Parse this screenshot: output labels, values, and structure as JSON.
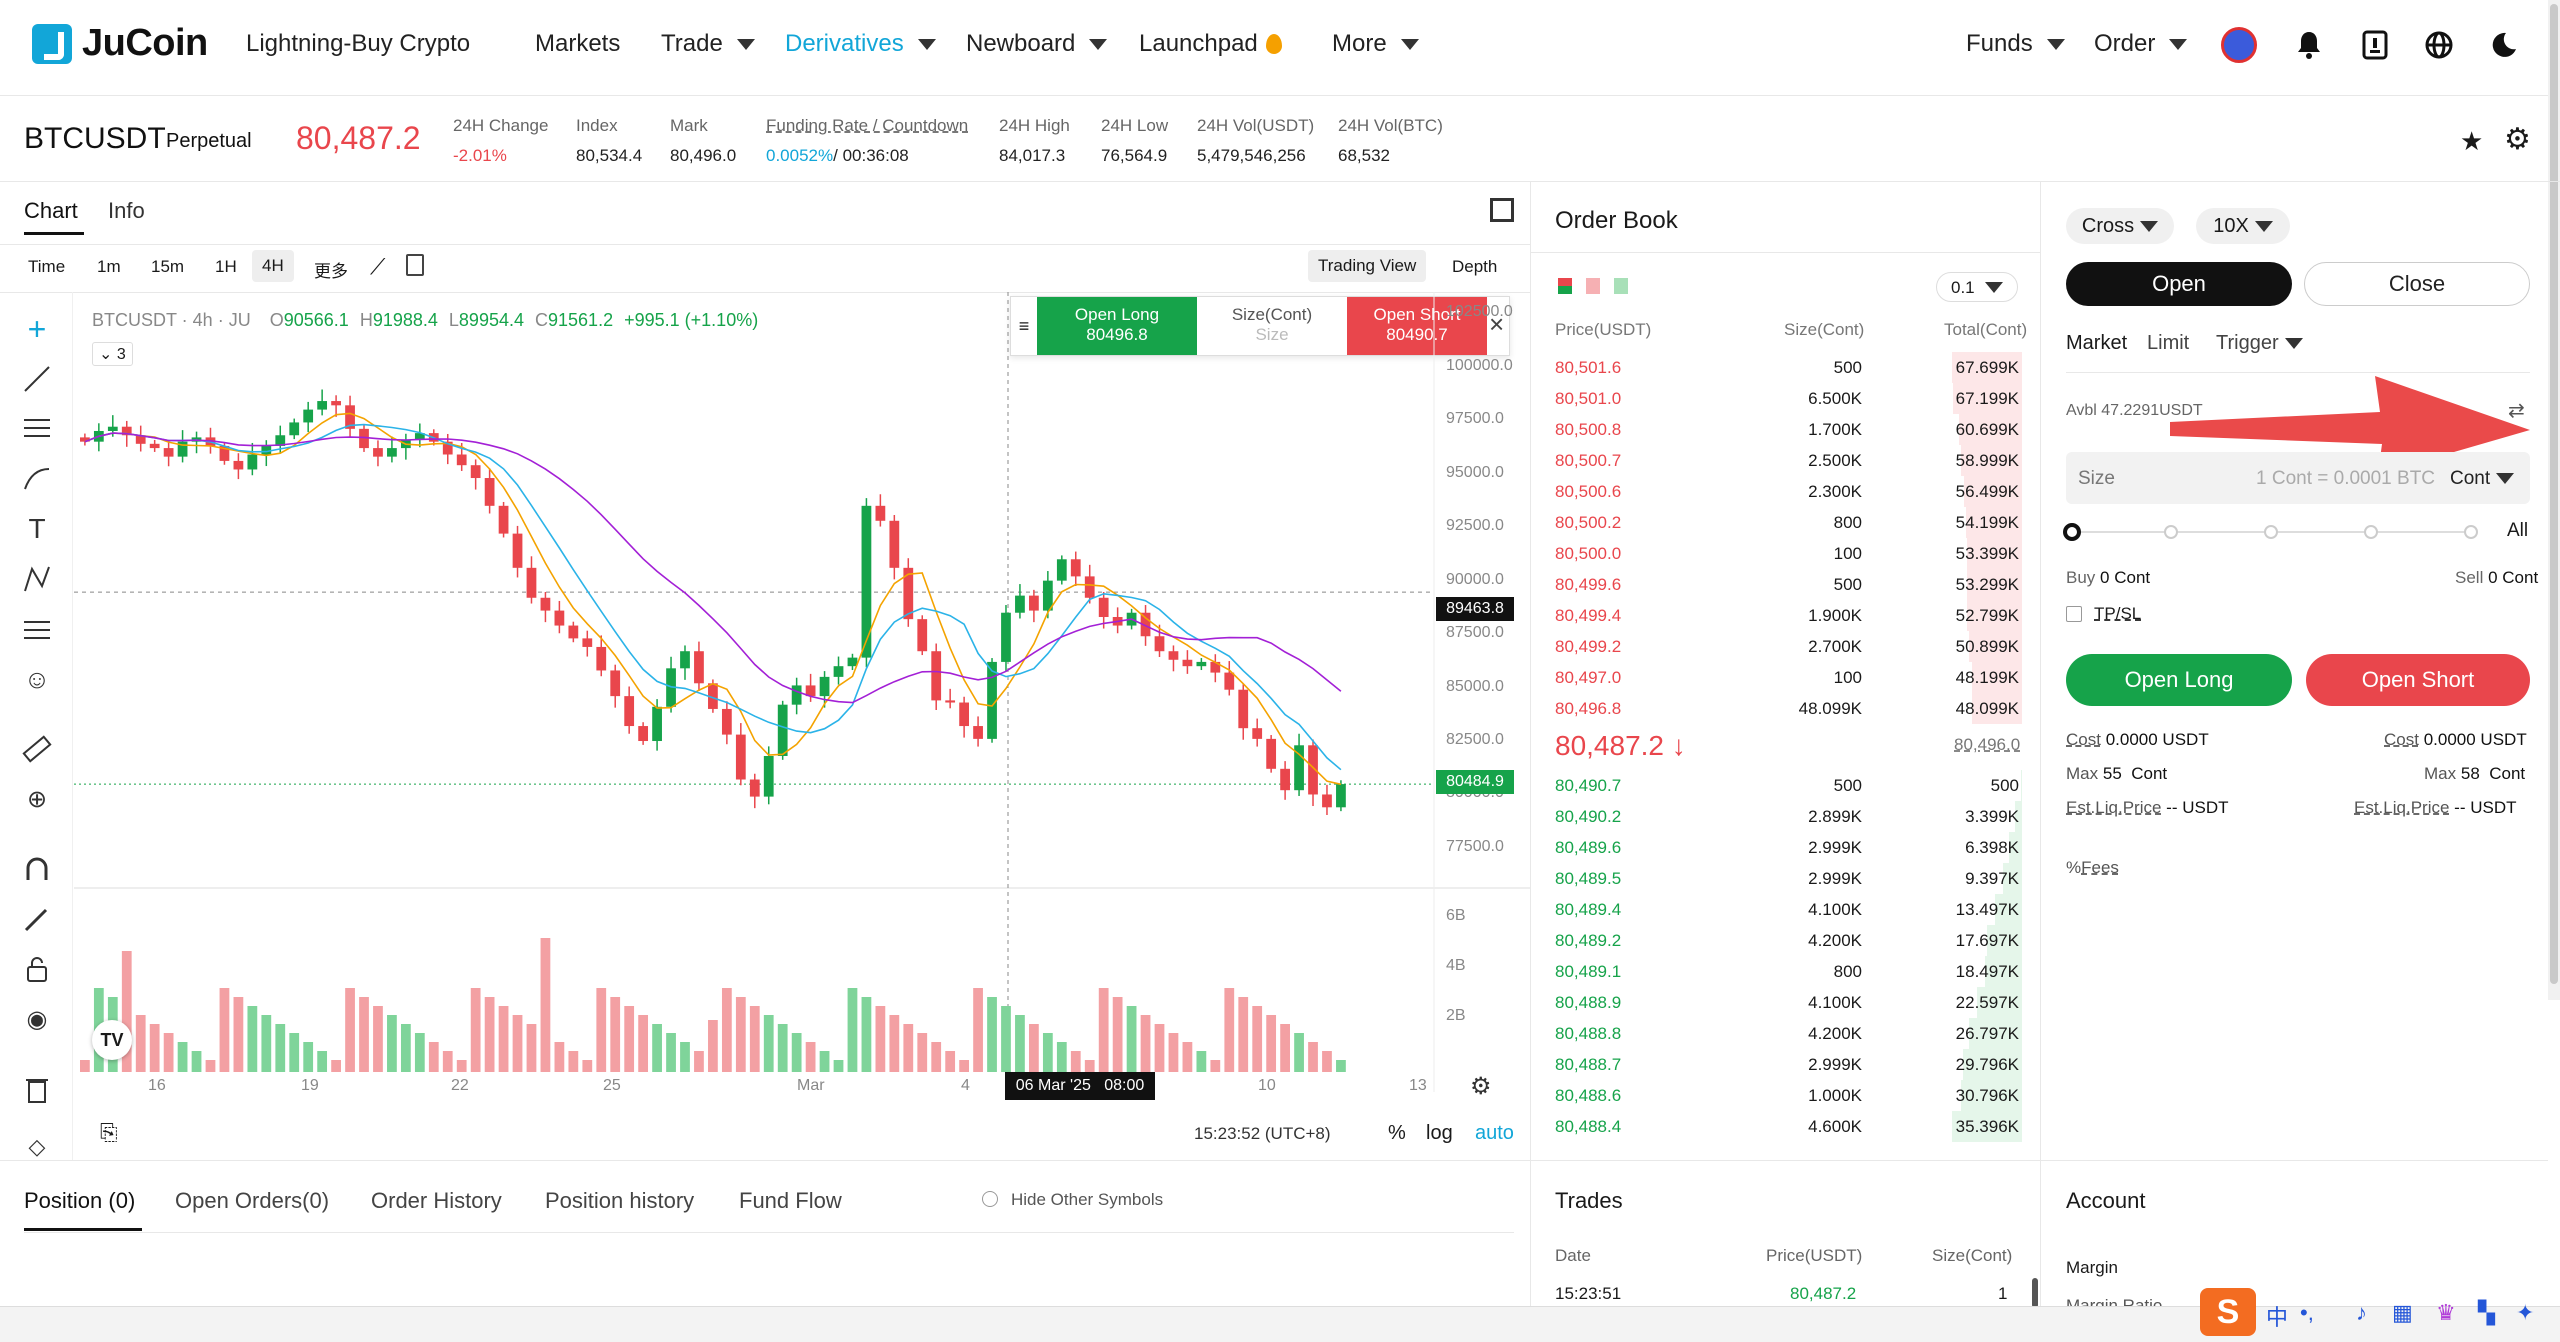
{
  "nav": {
    "logo": "JuCoin",
    "items": [
      "Lightning-Buy Crypto",
      "Markets",
      "Trade",
      "Derivatives",
      "Newboard",
      "Launchpad",
      "More"
    ],
    "right": [
      "Funds",
      "Order"
    ]
  },
  "ticker": {
    "symbol": "BTCUSDT",
    "type": "Perpetual",
    "price": "80,487.2",
    "stats": [
      {
        "label": "24H Change",
        "value": "-2.01%"
      },
      {
        "label": "Index",
        "value": "80,534.4"
      },
      {
        "label": "Mark",
        "value": "80,496.0"
      },
      {
        "label": "Funding Rate / Countdown",
        "value": "0.0052%",
        "value2": "/ 00:36:08"
      },
      {
        "label": "24H High",
        "value": "84,017.3"
      },
      {
        "label": "24H Low",
        "value": "76,564.9"
      },
      {
        "label": "24H Vol(USDT)",
        "value": "5,479,546,256"
      },
      {
        "label": "24H Vol(BTC)",
        "value": "68,532"
      }
    ]
  },
  "chart_panel": {
    "tabs": [
      "Chart",
      "Info"
    ],
    "intervals": [
      "Time",
      "1m",
      "15m",
      "1H",
      "4H",
      "更多"
    ],
    "views": [
      "Trading View",
      "Depth"
    ],
    "legend": "BTCUSDT · 4h · JU",
    "ohlc": {
      "o": "90566.1",
      "h": "91988.4",
      "l": "89954.4",
      "c": "91561.2",
      "chg": "+995.1 (+1.10%)"
    },
    "indicators_count": "3",
    "quick": {
      "long_label": "Open Long",
      "long_price": "80496.8",
      "size_label": "Size(Cont)",
      "size_ph": "Size",
      "short_label": "Open Short",
      "short_price": "80490.7"
    },
    "y_ticks": [
      "102500.0",
      "100000.0",
      "97500.0",
      "95000.0",
      "92500.0",
      "90000.0",
      "87500.0",
      "85000.0",
      "82500.0",
      "80000.0",
      "77500.0"
    ],
    "crosshair_price": "89463.8",
    "last_price": "80484.9",
    "vol_ticks": [
      "6B",
      "4B",
      "2B"
    ],
    "x_ticks": [
      "16",
      "19",
      "22",
      "25",
      "Mar",
      "4",
      "10",
      "13"
    ],
    "crosshair_time": "06 Mar '25   08:00",
    "clock": "15:23:52 (UTC+8)",
    "scale_opts": [
      "%",
      "log",
      "auto"
    ]
  },
  "chart_data": {
    "type": "candlestick",
    "title": "BTCUSDT · 4h · JU",
    "y_range": [
      76000,
      103500
    ],
    "x_labels": [
      "16",
      "19",
      "22",
      "25",
      "Mar",
      "4",
      "10",
      "13"
    ],
    "close_path": [
      96500,
      97000,
      97200,
      96800,
      96400,
      96200,
      95800,
      96500,
      96700,
      96300,
      95600,
      95200,
      95900,
      96300,
      96800,
      97400,
      98000,
      98400,
      98200,
      97100,
      96200,
      95800,
      96200,
      96600,
      96900,
      96500,
      95900,
      95400,
      94800,
      93500,
      92200,
      90600,
      89200,
      88600,
      87900,
      87300,
      86900,
      85800,
      84600,
      83200,
      82500,
      84100,
      85900,
      86700,
      85200,
      84000,
      82800,
      80700,
      79900,
      81800,
      84200,
      85100,
      84600,
      85500,
      86000,
      86400,
      93500,
      92800,
      90600,
      88200,
      86700,
      84400,
      84300,
      83200,
      82600,
      86200,
      88500,
      89300,
      88600,
      90000,
      91000,
      90200,
      89200,
      88300,
      87900,
      88500,
      87400,
      86700,
      86300,
      86000,
      86200,
      85700,
      84900,
      83100,
      82600,
      81200,
      80200,
      82300,
      80000,
      79400,
      80484.9
    ],
    "ma_series": [
      {
        "name": "MA1",
        "color": "#f4a300"
      },
      {
        "name": "MA2",
        "color": "#2bb3e8"
      },
      {
        "name": "MA3",
        "color": "#a320d6"
      }
    ]
  },
  "trade": {
    "margin_mode": "Cross",
    "leverage": "10X",
    "open": "Open",
    "close": "Close",
    "order_types": [
      "Market",
      "Limit",
      "Trigger"
    ],
    "avbl": "Avbl 47.2291USDT",
    "size_label": "Size",
    "size_ph": "1 Cont = 0.0001 BTC",
    "unit": "Cont",
    "all": "All",
    "buy": "Buy",
    "buy_val": "0 Cont",
    "sell": "Sell",
    "sell_val": "0 Cont",
    "tpsl": "TP/SL",
    "open_long": "Open Long",
    "open_short": "Open Short",
    "cost_l": "Cost",
    "cost_lv": "0.0000 USDT",
    "cost_r": "Cost",
    "cost_rv": "0.0000 USDT",
    "max_l": "Max",
    "max_lv": "55  Cont",
    "max_r": "Max",
    "max_rv": "58  Cont",
    "liq_l": "Est.Liq.Price",
    "liq_lv": "-- USDT",
    "liq_r": "Est.Liq.Price",
    "liq_rv": "-- USDT",
    "fees": "Fees"
  },
  "orderbook": {
    "title": "Order Book",
    "precision": "0.1",
    "headers": [
      "Price(USDT)",
      "Size(Cont)",
      "Total(Cont)"
    ],
    "asks": [
      [
        "80,501.6",
        "500",
        "67.699K"
      ],
      [
        "80,501.0",
        "6.500K",
        "67.199K"
      ],
      [
        "80,500.8",
        "1.700K",
        "60.699K"
      ],
      [
        "80,500.7",
        "2.500K",
        "58.999K"
      ],
      [
        "80,500.6",
        "2.300K",
        "56.499K"
      ],
      [
        "80,500.2",
        "800",
        "54.199K"
      ],
      [
        "80,500.0",
        "100",
        "53.399K"
      ],
      [
        "80,499.6",
        "500",
        "53.299K"
      ],
      [
        "80,499.4",
        "1.900K",
        "52.799K"
      ],
      [
        "80,499.2",
        "2.700K",
        "50.899K"
      ],
      [
        "80,497.0",
        "100",
        "48.199K"
      ],
      [
        "80,496.8",
        "48.099K",
        "48.099K"
      ]
    ],
    "last": "80,487.2",
    "mark": "80,496.0",
    "bids": [
      [
        "80,490.7",
        "500",
        "500"
      ],
      [
        "80,490.2",
        "2.899K",
        "3.399K"
      ],
      [
        "80,489.6",
        "2.999K",
        "6.398K"
      ],
      [
        "80,489.5",
        "2.999K",
        "9.397K"
      ],
      [
        "80,489.4",
        "4.100K",
        "13.497K"
      ],
      [
        "80,489.2",
        "4.200K",
        "17.697K"
      ],
      [
        "80,489.1",
        "800",
        "18.497K"
      ],
      [
        "80,488.9",
        "4.100K",
        "22.597K"
      ],
      [
        "80,488.8",
        "4.200K",
        "26.797K"
      ],
      [
        "80,488.7",
        "2.999K",
        "29.796K"
      ],
      [
        "80,488.6",
        "1.000K",
        "30.796K"
      ],
      [
        "80,488.4",
        "4.600K",
        "35.396K"
      ]
    ]
  },
  "bottom": {
    "tabs": [
      "Position (0)",
      "Open Orders(0)",
      "Order History",
      "Position history",
      "Fund Flow"
    ],
    "hide": "Hide Other Symbols"
  },
  "trades": {
    "title": "Trades",
    "headers": [
      "Date",
      "Price(USDT)",
      "Size(Cont)"
    ],
    "row": [
      "15:23:51",
      "80,487.2",
      "1"
    ]
  },
  "account": {
    "title": "Account",
    "margin": "Margin",
    "ratio": "Margin Ratio"
  },
  "colors": {
    "up": "#16a34a",
    "down": "#e9464c",
    "accent": "#12a6d8"
  }
}
